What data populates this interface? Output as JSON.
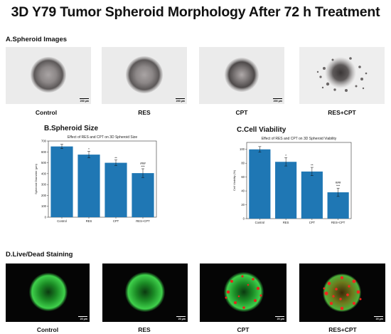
{
  "title": "3D Y79 Tumor Spheroid Morphology After 72 h Treatment",
  "section_a": {
    "label": "A.Spheroid Images",
    "images": [
      {
        "label": "Control",
        "scale": "200 μm"
      },
      {
        "label": "RES",
        "scale": "200 μm"
      },
      {
        "label": "CPT",
        "scale": "200 μm"
      },
      {
        "label": "RES+CPT",
        "scale": ""
      }
    ]
  },
  "section_d": {
    "label": "D.Live/Dead Staining",
    "images": [
      {
        "label": "Control",
        "scale": "20 μm"
      },
      {
        "label": "RES",
        "scale": "20 μm"
      },
      {
        "label": "CPT",
        "scale": "20 μm"
      },
      {
        "label": "RES+CPT",
        "scale": "20 μm"
      }
    ]
  },
  "chart_data": [
    {
      "type": "bar",
      "panel_label": "B.Spheroid Size",
      "title": "Effect of RES and CPT on 3D Spheroid Size",
      "ylabel": "Spheroid Diameter (μm)",
      "xlabel": "",
      "categories": [
        "Control",
        "RES",
        "CPT",
        "RES+CPT"
      ],
      "values": [
        650,
        575,
        500,
        405
      ],
      "errors": [
        20,
        30,
        25,
        40
      ],
      "annotations": [
        [
          ""
        ],
        [
          "*"
        ],
        [
          "**"
        ],
        [
          "###",
          "***"
        ]
      ],
      "ylim": [
        0,
        700
      ],
      "yticks": [
        0,
        100,
        200,
        300,
        400,
        500,
        600,
        700
      ],
      "bar_color": "#1f77b4"
    },
    {
      "type": "bar",
      "panel_label": "C.Cell Viability",
      "title": "Effect of RES and CPT on 3D Spheroid Viability",
      "ylabel": "Cell Viability (%)",
      "xlabel": "",
      "categories": [
        "Control",
        "RES",
        "CPT",
        "RES+CPT"
      ],
      "values": [
        100,
        82,
        68,
        38
      ],
      "errors": [
        4,
        6,
        6,
        6
      ],
      "annotations": [
        [
          ""
        ],
        [
          "*"
        ],
        [
          "**"
        ],
        [
          "###",
          "***"
        ]
      ],
      "ylim": [
        0,
        110
      ],
      "yticks": [
        0,
        20,
        40,
        60,
        80,
        100
      ],
      "bar_color": "#1f77b4"
    }
  ]
}
